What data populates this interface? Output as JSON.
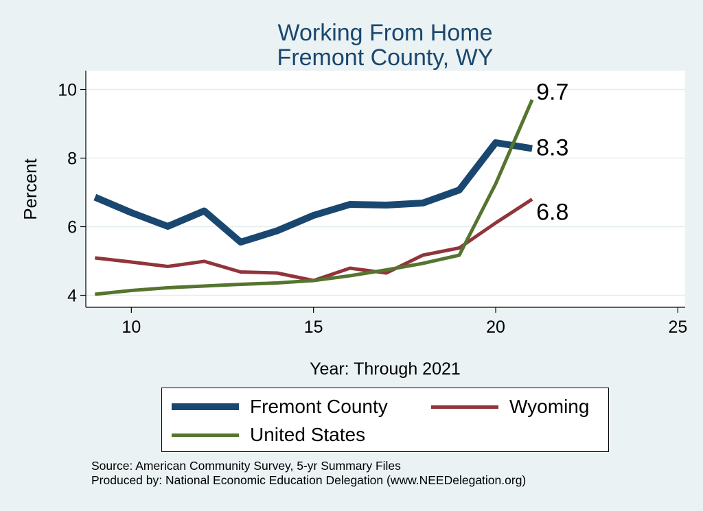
{
  "chart_data": {
    "type": "line",
    "title": [
      "Working From Home",
      "Fremont County, WY"
    ],
    "xlabel": "Year: Through 2021",
    "ylabel": "Percent",
    "xlim": [
      8.75,
      25.2
    ],
    "ylim": [
      3.65,
      10.55
    ],
    "xticks": [
      10,
      15,
      20,
      25
    ],
    "yticks": [
      4,
      6,
      8,
      10
    ],
    "grid": true,
    "legend_position": "bottom",
    "series": [
      {
        "name": "Fremont County",
        "color": "#1a476f",
        "x": [
          9,
          10,
          11,
          12,
          13,
          14,
          15,
          16,
          17,
          18,
          19,
          20,
          21
        ],
        "y": [
          6.86,
          6.41,
          6.01,
          6.46,
          5.55,
          5.88,
          6.33,
          6.65,
          6.63,
          6.69,
          7.07,
          8.45,
          8.28
        ],
        "end_label": "8.3"
      },
      {
        "name": "Wyoming",
        "color": "#90353b",
        "x": [
          9,
          10,
          11,
          12,
          13,
          14,
          15,
          16,
          17,
          18,
          19,
          20,
          21
        ],
        "y": [
          5.09,
          4.97,
          4.84,
          4.99,
          4.68,
          4.65,
          4.43,
          4.79,
          4.65,
          5.17,
          5.38,
          6.11,
          6.8
        ],
        "end_label": "6.8"
      },
      {
        "name": "United States",
        "color": "#55752f",
        "x": [
          9,
          10,
          11,
          12,
          13,
          14,
          15,
          16,
          17,
          18,
          19,
          20,
          21
        ],
        "y": [
          4.03,
          4.14,
          4.22,
          4.27,
          4.32,
          4.36,
          4.43,
          4.57,
          4.74,
          4.93,
          5.17,
          7.25,
          9.7
        ],
        "end_label": "9.7"
      }
    ]
  },
  "source_lines": [
    "Source: American Community Survey, 5-yr Summary Files",
    "Produced by: National Economic Education Delegation (www.NEEDelegation.org)"
  ]
}
